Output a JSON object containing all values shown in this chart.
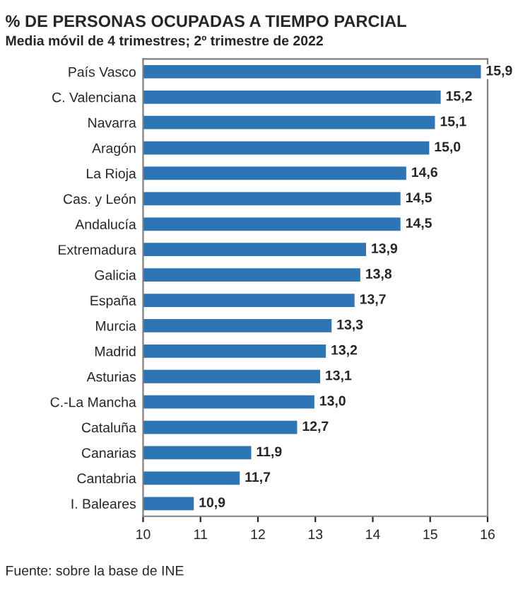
{
  "chart_data": {
    "type": "bar",
    "orientation": "horizontal",
    "title": "% DE PERSONAS OCUPADAS A TIEMPO PARCIAL",
    "subtitle": "Media móvil de 4 trimestres; 2º trimestre de 2022",
    "categories": [
      "País Vasco",
      "C. Valenciana",
      "Navarra",
      "Aragón",
      "La Rioja",
      "Cas. y León",
      "Andalucía",
      "Extremadura",
      "Galicia",
      "España",
      "Murcia",
      "Madrid",
      "Asturias",
      "C.-La Mancha",
      "Cataluña",
      "Canarias",
      "Cantabria",
      "I. Baleares"
    ],
    "values": [
      15.9,
      15.2,
      15.1,
      15.0,
      14.6,
      14.5,
      14.5,
      13.9,
      13.8,
      13.7,
      13.3,
      13.2,
      13.1,
      13.0,
      12.7,
      11.9,
      11.7,
      10.9
    ],
    "value_labels": [
      "15,9",
      "15,2",
      "15,1",
      "15,0",
      "14,6",
      "14,5",
      "14,5",
      "13,9",
      "13,8",
      "13,7",
      "13,3",
      "13,2",
      "13,1",
      "13,0",
      "12,7",
      "11,9",
      "11,7",
      "10,9"
    ],
    "color": "#2e75b6",
    "xlim": [
      10,
      16
    ],
    "xticks": [
      10,
      11,
      12,
      13,
      14,
      15,
      16
    ],
    "grid": false,
    "annotations": [
      "Fuente: sobre la base de INE"
    ]
  }
}
